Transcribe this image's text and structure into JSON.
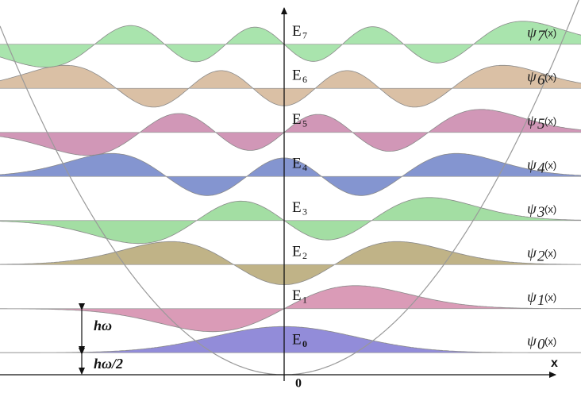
{
  "levels": [
    {
      "energy": "E",
      "index": "0",
      "psi": "ψ",
      "psi_index": "0",
      "arg": "(x)"
    },
    {
      "energy": "E",
      "index": "1",
      "psi": "ψ",
      "psi_index": "1",
      "arg": "(x)"
    },
    {
      "energy": "E",
      "index": "2",
      "psi": "ψ",
      "psi_index": "2",
      "arg": "(x)"
    },
    {
      "energy": "E",
      "index": "3",
      "psi": "ψ",
      "psi_index": "3",
      "arg": "(x)"
    },
    {
      "energy": "E",
      "index": "4",
      "psi": "ψ",
      "psi_index": "4",
      "arg": "(x)"
    },
    {
      "energy": "E",
      "index": "5",
      "psi": "ψ",
      "psi_index": "5",
      "arg": "(x)"
    },
    {
      "energy": "E",
      "index": "6",
      "psi": "ψ",
      "psi_index": "6",
      "arg": "(x)"
    },
    {
      "energy": "E",
      "index": "7",
      "psi": "ψ",
      "psi_index": "7",
      "arg": "(x)"
    }
  ],
  "axis": {
    "x_label": "x",
    "origin": "0"
  },
  "spacing": {
    "quantum": "hω",
    "zero_point": "hω/2"
  }
}
